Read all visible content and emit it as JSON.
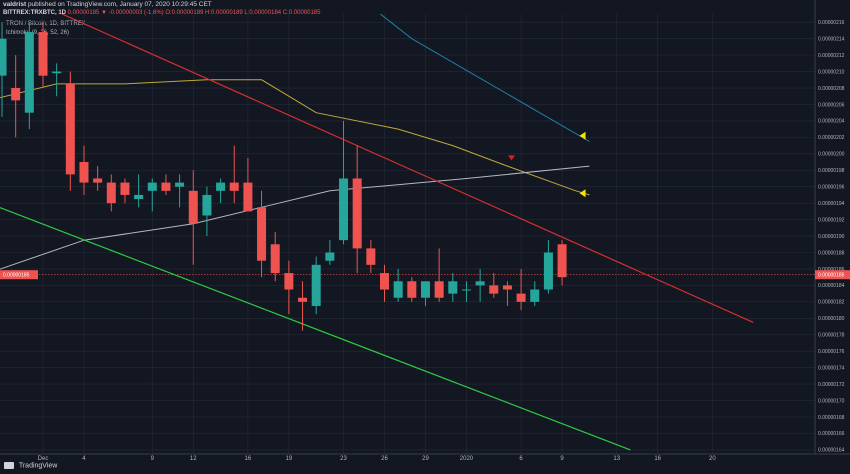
{
  "header": {
    "publisher": "valdrist",
    "published_text": "published on TradingView.com, January 07, 2020 10:29:45 CET",
    "symbol": "BITTREX:TRXBTC, 1D",
    "ohlc": "0.00000185 ▼ -0.00000003 (-1.6%) O:0.00000189 H:0.00000189 L:0.00000184 C:0.00000185",
    "title": "TRON / Bitcoin, 1D, BITTREX",
    "indicator": "Ichimoku (9, 26, 52, 26)"
  },
  "footer": {
    "brand": "TradingView"
  },
  "colors": {
    "background": "#131722",
    "grid": "#262b38",
    "up": "#26a69a",
    "down": "#ef5350",
    "baseline": "#d32f2f",
    "span_a": "#bfa83c",
    "span_b": "#1f7fa8",
    "mid_line": "#b6b8be",
    "support": "#2ecc40",
    "resistance": "#d22f2f",
    "marker_yellow": "#f5e700",
    "marker_red": "#e01b1b"
  },
  "chart_data": {
    "type": "candlestick",
    "title": "TRON / Bitcoin, 1D, BITTREX",
    "last_price": "0.00000185",
    "y_unit": "x1e-8 BTC",
    "ylim": [
      163.5,
      217
    ],
    "yticks": [
      "0.00000216",
      "0.00000214",
      "0.00000212",
      "0.00000210",
      "0.00000208",
      "0.00000206",
      "0.00000204",
      "0.00000202",
      "0.00000200",
      "0.00000198",
      "0.00000196",
      "0.00000194",
      "0.00000192",
      "0.00000190",
      "0.00000188",
      "0.00000186",
      "0.00000184",
      "0.00000182",
      "0.00000180",
      "0.00000178",
      "0.00000176",
      "0.00000174",
      "0.00000172",
      "0.00000170",
      "0.00000168",
      "0.00000166",
      "0.00000164"
    ],
    "xticks": [
      {
        "label": "Dec",
        "day": 1
      },
      {
        "label": "4",
        "day": 4
      },
      {
        "label": "9",
        "day": 9
      },
      {
        "label": "12",
        "day": 12
      },
      {
        "label": "16",
        "day": 16
      },
      {
        "label": "19",
        "day": 19
      },
      {
        "label": "23",
        "day": 23
      },
      {
        "label": "26",
        "day": 26
      },
      {
        "label": "29",
        "day": 29
      },
      {
        "label": "2020",
        "day": 32
      },
      {
        "label": "6",
        "day": 36
      },
      {
        "label": "9",
        "day": 39
      },
      {
        "label": "13",
        "day": 43
      },
      {
        "label": "16",
        "day": 46
      },
      {
        "label": "20",
        "day": 50
      }
    ],
    "candles": [
      {
        "d": -2,
        "o": 209.5,
        "h": 216,
        "l": 204.5,
        "c": 214
      },
      {
        "d": -1,
        "o": 208,
        "h": 212,
        "l": 202,
        "c": 206.5
      },
      {
        "d": 0,
        "o": 205,
        "h": 216,
        "l": 203,
        "c": 214.8
      },
      {
        "d": 1,
        "o": 214.8,
        "h": 216,
        "l": 208,
        "c": 209.5
      },
      {
        "d": 2,
        "o": 209.8,
        "h": 211,
        "l": 207,
        "c": 210
      },
      {
        "d": 3,
        "o": 208.5,
        "h": 210,
        "l": 195.5,
        "c": 197.5
      },
      {
        "d": 4,
        "o": 199,
        "h": 201,
        "l": 195,
        "c": 196.5
      },
      {
        "d": 5,
        "o": 197,
        "h": 198.5,
        "l": 195.5,
        "c": 196.5
      },
      {
        "d": 6,
        "o": 196.5,
        "h": 197.5,
        "l": 193,
        "c": 194
      },
      {
        "d": 7,
        "o": 196.5,
        "h": 197,
        "l": 194,
        "c": 195
      },
      {
        "d": 8,
        "o": 194.5,
        "h": 197.5,
        "l": 193.5,
        "c": 195
      },
      {
        "d": 9,
        "o": 195.5,
        "h": 197,
        "l": 193,
        "c": 196.5
      },
      {
        "d": 10,
        "o": 196.5,
        "h": 197.5,
        "l": 195,
        "c": 195.5
      },
      {
        "d": 11,
        "o": 196,
        "h": 197.5,
        "l": 193.5,
        "c": 196.5
      },
      {
        "d": 12,
        "o": 195.5,
        "h": 198,
        "l": 186.5,
        "c": 191.5
      },
      {
        "d": 13,
        "o": 192.5,
        "h": 196,
        "l": 190,
        "c": 195
      },
      {
        "d": 14,
        "o": 195.5,
        "h": 197,
        "l": 194,
        "c": 196.5
      },
      {
        "d": 15,
        "o": 196.5,
        "h": 201,
        "l": 194,
        "c": 195.5
      },
      {
        "d": 16,
        "o": 196.5,
        "h": 199.5,
        "l": 193.5,
        "c": 193
      },
      {
        "d": 17,
        "o": 193.5,
        "h": 195.5,
        "l": 185,
        "c": 187
      },
      {
        "d": 18,
        "o": 189,
        "h": 190.5,
        "l": 184.5,
        "c": 185.5
      },
      {
        "d": 19,
        "o": 185.5,
        "h": 187,
        "l": 180.5,
        "c": 183.5
      },
      {
        "d": 20,
        "o": 182.5,
        "h": 184.5,
        "l": 178.5,
        "c": 182
      },
      {
        "d": 21,
        "o": 181.5,
        "h": 187.5,
        "l": 180.5,
        "c": 186.5
      },
      {
        "d": 22,
        "o": 187,
        "h": 189.5,
        "l": 186.5,
        "c": 188
      },
      {
        "d": 23,
        "o": 189.5,
        "h": 204,
        "l": 189,
        "c": 197
      },
      {
        "d": 24,
        "o": 197,
        "h": 201,
        "l": 185.5,
        "c": 188.5
      },
      {
        "d": 25,
        "o": 188.5,
        "h": 189.5,
        "l": 185.5,
        "c": 186.5
      },
      {
        "d": 26,
        "o": 185.5,
        "h": 186.5,
        "l": 182,
        "c": 183.5
      },
      {
        "d": 27,
        "o": 182.5,
        "h": 186,
        "l": 182,
        "c": 184.5
      },
      {
        "d": 28,
        "o": 184.5,
        "h": 185,
        "l": 182,
        "c": 182.5
      },
      {
        "d": 29,
        "o": 182.5,
        "h": 184.5,
        "l": 181.5,
        "c": 184.5
      },
      {
        "d": 30,
        "o": 184.5,
        "h": 188.5,
        "l": 182,
        "c": 182.5
      },
      {
        "d": 31,
        "o": 183,
        "h": 185.5,
        "l": 182,
        "c": 184.5
      },
      {
        "d": 32,
        "o": 183.5,
        "h": 184.5,
        "l": 182,
        "c": 183.5
      },
      {
        "d": 33,
        "o": 184,
        "h": 186,
        "l": 182,
        "c": 184.5
      },
      {
        "d": 34,
        "o": 184,
        "h": 185.5,
        "l": 182.5,
        "c": 183
      },
      {
        "d": 35,
        "o": 184,
        "h": 184.5,
        "l": 181.5,
        "c": 183.5
      },
      {
        "d": 36,
        "o": 183,
        "h": 186,
        "l": 181,
        "c": 182
      },
      {
        "d": 37,
        "o": 182,
        "h": 184.5,
        "l": 181.5,
        "c": 183.5
      },
      {
        "d": 38,
        "o": 183.5,
        "h": 189.5,
        "l": 183,
        "c": 188
      },
      {
        "d": 39,
        "o": 189,
        "h": 189.5,
        "l": 184,
        "c": 185
      }
    ],
    "lines": {
      "span_a": [
        [
          -3,
          206.5
        ],
        [
          2,
          208.5
        ],
        [
          7,
          208.5
        ],
        [
          13,
          209
        ],
        [
          17,
          209
        ],
        [
          21,
          205
        ],
        [
          27,
          203
        ],
        [
          31,
          201
        ],
        [
          35,
          198.5
        ],
        [
          40,
          195.5
        ],
        [
          41,
          195
        ]
      ],
      "span_b": [
        [
          -3,
          232
        ],
        [
          15,
          231
        ],
        [
          28,
          214
        ],
        [
          41,
          201.5
        ]
      ],
      "mid_line": [
        [
          -3,
          185.5
        ],
        [
          4,
          189.5
        ],
        [
          12,
          191.5
        ],
        [
          17,
          193.5
        ],
        [
          22,
          195.5
        ],
        [
          32,
          197
        ],
        [
          41,
          198.5
        ]
      ],
      "support": [
        [
          -3,
          194
        ],
        [
          44,
          164
        ]
      ],
      "resistance": [
        [
          -3,
          221
        ],
        [
          53,
          179.5
        ]
      ]
    },
    "markers": [
      {
        "d": 40.5,
        "y": 202.2,
        "color": "yellow"
      },
      {
        "d": 40.5,
        "y": 195.2,
        "color": "yellow"
      },
      {
        "d": 35.3,
        "y": 199.5,
        "color": "red"
      }
    ]
  }
}
